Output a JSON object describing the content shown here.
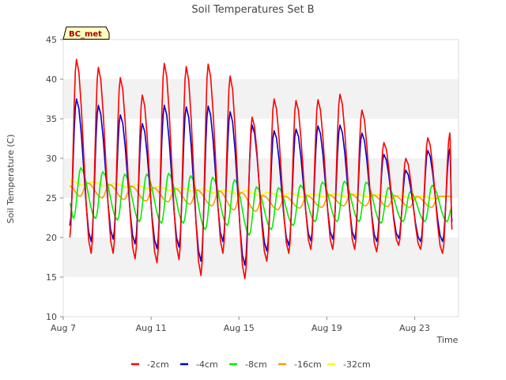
{
  "chart_data": {
    "type": "line",
    "title": "Soil Temperatures Set B",
    "xlabel": "Time",
    "ylabel": "Soil Temperature (C)",
    "ylim": [
      10,
      45
    ],
    "xlim_days": [
      7,
      25
    ],
    "x_unit": "day of August",
    "yticks": [
      10,
      15,
      20,
      25,
      30,
      35,
      40,
      45
    ],
    "xticks": [
      {
        "day": 7,
        "label": "Aug 7"
      },
      {
        "day": 11,
        "label": "Aug 11"
      },
      {
        "day": 15,
        "label": "Aug 15"
      },
      {
        "day": 19,
        "label": "Aug 19"
      },
      {
        "day": 23,
        "label": "Aug 23"
      }
    ],
    "grid": "horizontal-bands",
    "legend_position": "bottom",
    "site_label": "BC_met",
    "series": [
      {
        "name": "-2cm",
        "color": "#ff0000",
        "daily": [
          [
            7.6,
            42.5,
            18.0
          ],
          [
            8.6,
            41.5,
            18.0
          ],
          [
            9.6,
            40.2,
            18.0
          ],
          [
            10.6,
            38.0,
            17.3
          ],
          [
            11.6,
            42.0,
            16.8
          ],
          [
            12.6,
            41.6,
            17.2
          ],
          [
            13.6,
            41.9,
            15.2
          ],
          [
            14.6,
            40.4,
            18.0
          ],
          [
            15.6,
            35.2,
            14.8
          ],
          [
            16.6,
            37.5,
            17.0
          ],
          [
            17.6,
            37.3,
            18.0
          ],
          [
            18.6,
            37.4,
            18.5
          ],
          [
            19.6,
            38.1,
            18.5
          ],
          [
            20.6,
            36.1,
            18.5
          ],
          [
            21.6,
            32.0,
            18.2
          ],
          [
            22.6,
            30.0,
            19.0
          ],
          [
            23.6,
            32.6,
            18.5
          ],
          [
            24.6,
            33.2,
            18.0
          ]
        ],
        "start": 20.0,
        "end": 21.0
      },
      {
        "name": "-4cm",
        "color": "#0000cc",
        "daily": [
          [
            7.6,
            37.5,
            19.5
          ],
          [
            8.6,
            36.7,
            19.5
          ],
          [
            9.6,
            35.5,
            19.8
          ],
          [
            10.6,
            34.4,
            19.2
          ],
          [
            11.6,
            36.7,
            18.6
          ],
          [
            12.6,
            36.5,
            18.8
          ],
          [
            13.6,
            36.6,
            17.0
          ],
          [
            14.6,
            35.9,
            19.5
          ],
          [
            15.6,
            34.2,
            16.5
          ],
          [
            16.6,
            33.5,
            18.3
          ],
          [
            17.6,
            33.7,
            19.0
          ],
          [
            18.6,
            34.1,
            19.6
          ],
          [
            19.6,
            34.2,
            19.8
          ],
          [
            20.6,
            33.2,
            19.8
          ],
          [
            21.6,
            30.5,
            19.5
          ],
          [
            22.6,
            28.5,
            19.9
          ],
          [
            23.6,
            31.0,
            19.5
          ],
          [
            24.6,
            31.2,
            19.5
          ]
        ],
        "start": 21.5,
        "end": 22.0
      },
      {
        "name": "-8cm",
        "color": "#00ee00",
        "daily": [
          [
            7.8,
            28.8,
            22.4
          ],
          [
            8.8,
            28.3,
            22.4
          ],
          [
            9.8,
            28.0,
            22.2
          ],
          [
            10.8,
            28.0,
            22.0
          ],
          [
            11.8,
            28.1,
            21.8
          ],
          [
            12.8,
            27.8,
            21.8
          ],
          [
            13.8,
            27.6,
            21.0
          ],
          [
            14.8,
            27.3,
            21.5
          ],
          [
            15.8,
            26.4,
            20.3
          ],
          [
            16.8,
            26.3,
            21.0
          ],
          [
            17.8,
            26.6,
            21.5
          ],
          [
            18.8,
            27.0,
            22.0
          ],
          [
            19.8,
            27.1,
            22.0
          ],
          [
            20.8,
            27.0,
            22.0
          ],
          [
            21.8,
            26.3,
            21.8
          ],
          [
            22.8,
            25.8,
            22.0
          ],
          [
            23.8,
            26.6,
            22.0
          ],
          [
            24.8,
            27.0,
            22.0
          ]
        ],
        "start": 24.3,
        "end": 23.8
      },
      {
        "name": "-16cm",
        "color": "#ff9900",
        "daily": [
          [
            8.1,
            26.9,
            25.2
          ],
          [
            9.1,
            26.7,
            25.0
          ],
          [
            10.1,
            26.5,
            24.8
          ],
          [
            11.1,
            26.3,
            24.6
          ],
          [
            12.1,
            26.2,
            24.5
          ],
          [
            13.1,
            26.0,
            24.2
          ],
          [
            14.1,
            25.9,
            24.0
          ],
          [
            15.1,
            25.7,
            23.5
          ],
          [
            16.1,
            25.3,
            23.3
          ],
          [
            17.1,
            25.2,
            23.5
          ],
          [
            18.1,
            25.3,
            23.7
          ],
          [
            19.1,
            25.4,
            23.8
          ],
          [
            20.1,
            25.5,
            24.0
          ],
          [
            21.1,
            25.4,
            24.0
          ],
          [
            22.1,
            25.3,
            23.9
          ],
          [
            23.1,
            25.2,
            23.8
          ],
          [
            24.1,
            25.2,
            23.8
          ],
          [
            25.1,
            25.1,
            24.0
          ]
        ],
        "start": 26.5,
        "end": 25.2
      },
      {
        "name": "-32cm",
        "color": "#ffff00",
        "daily": [
          [
            8.3,
            27.0,
            26.6
          ],
          [
            9.3,
            26.8,
            26.5
          ],
          [
            10.3,
            26.6,
            26.3
          ],
          [
            11.3,
            26.4,
            26.1
          ],
          [
            12.3,
            26.3,
            25.9
          ],
          [
            13.3,
            26.1,
            25.8
          ],
          [
            14.3,
            26.0,
            25.6
          ],
          [
            15.3,
            25.9,
            25.5
          ],
          [
            16.3,
            25.7,
            25.3
          ],
          [
            17.3,
            25.6,
            25.2
          ],
          [
            18.3,
            25.5,
            25.1
          ],
          [
            19.3,
            25.5,
            25.1
          ],
          [
            20.3,
            25.5,
            25.1
          ],
          [
            21.3,
            25.4,
            25.1
          ],
          [
            22.3,
            25.3,
            25.0
          ],
          [
            23.3,
            25.2,
            24.9
          ],
          [
            24.3,
            25.2,
            24.9
          ],
          [
            25.3,
            25.1,
            24.9
          ]
        ],
        "start": 27.2,
        "end": 25.1
      }
    ]
  }
}
